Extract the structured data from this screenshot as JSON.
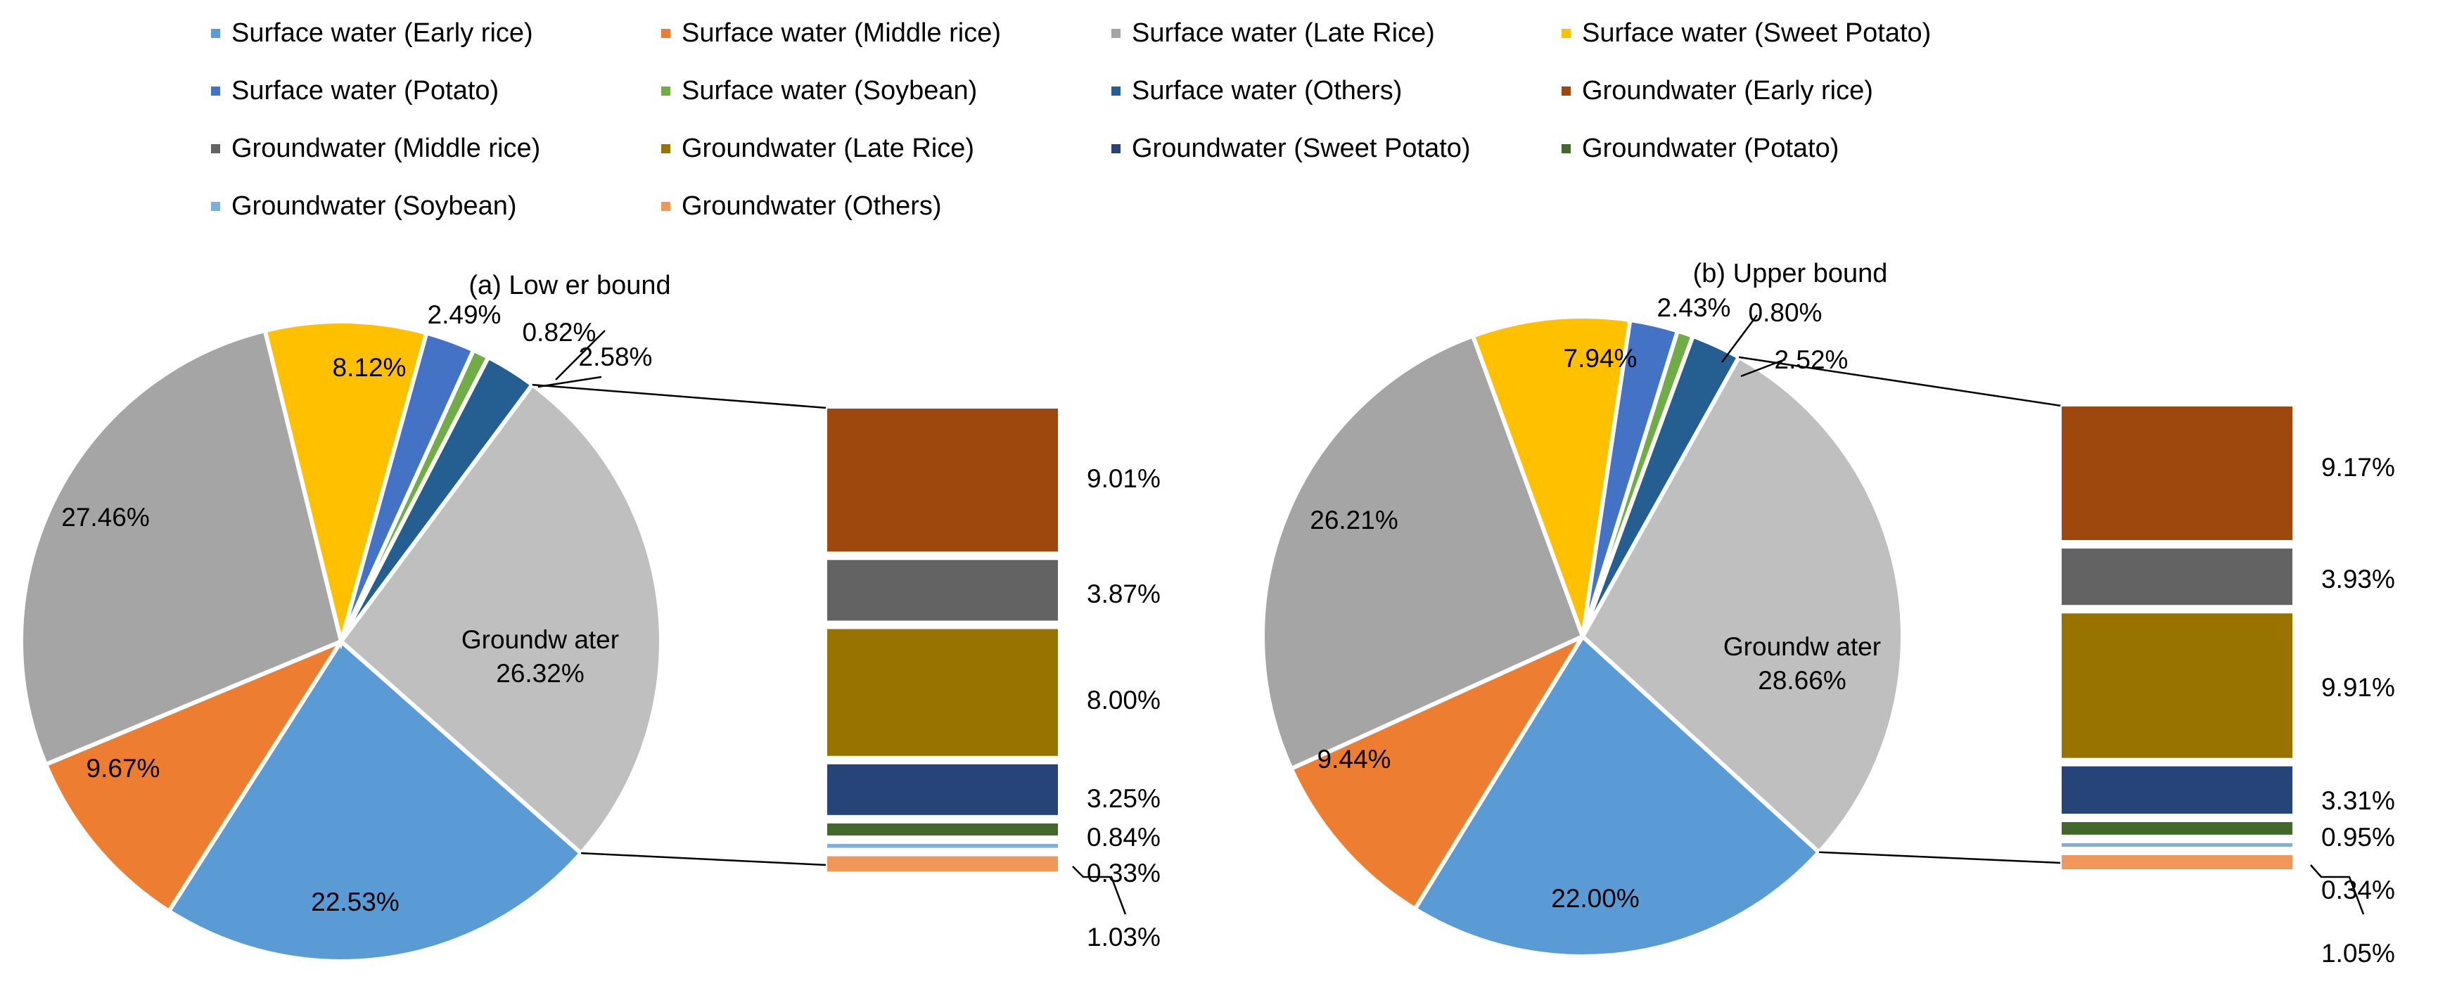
{
  "legend": [
    {
      "label": "Surface water (Early rice)",
      "color": "#5B9BD5"
    },
    {
      "label": "Surface water (Middle rice)",
      "color": "#ED7D31"
    },
    {
      "label": "Surface water (Late Rice)",
      "color": "#A5A5A5"
    },
    {
      "label": "Surface water (Sweet Potato)",
      "color": "#FFC000"
    },
    {
      "label": "Surface water (Potato)",
      "color": "#4472C4"
    },
    {
      "label": "Surface water (Soybean)",
      "color": "#70AD47"
    },
    {
      "label": "Surface water (Others)",
      "color": "#255E91"
    },
    {
      "label": "Groundwater (Early rice)",
      "color": "#9E480E"
    },
    {
      "label": "Groundwater (Middle rice)",
      "color": "#636363"
    },
    {
      "label": "Groundwater (Late Rice)",
      "color": "#997300"
    },
    {
      "label": "Groundwater (Sweet Potato)",
      "color": "#264478"
    },
    {
      "label": "Groundwater (Potato)",
      "color": "#43682B"
    },
    {
      "label": "Groundwater (Soybean)",
      "color": "#7CAFDD"
    },
    {
      "label": "Groundwater (Others)",
      "color": "#F1975A"
    }
  ],
  "chart_data": [
    {
      "type": "pie",
      "title": "(a) Low er bound",
      "pie": {
        "slices": [
          {
            "name": "Surface water (Early rice)",
            "value": 22.53,
            "label": "22.53%",
            "color": "#5B9BD5"
          },
          {
            "name": "Surface water (Middle rice)",
            "value": 9.67,
            "label": "9.67%",
            "color": "#ED7D31"
          },
          {
            "name": "Surface water (Late Rice)",
            "value": 27.46,
            "label": "27.46%",
            "color": "#A5A5A5"
          },
          {
            "name": "Surface water (Sweet Potato)",
            "value": 8.12,
            "label": "8.12%",
            "color": "#FFC000"
          },
          {
            "name": "Surface water (Potato)",
            "value": 2.49,
            "label": "2.49%",
            "color": "#4472C4"
          },
          {
            "name": "Surface water (Soybean)",
            "value": 0.82,
            "label": "0.82%",
            "color": "#70AD47"
          },
          {
            "name": "Surface water (Others)",
            "value": 2.58,
            "label": "2.58%",
            "color": "#255E91"
          },
          {
            "name": "Groundwater",
            "value": 26.32,
            "label": "Groundw ater\n26.32%",
            "color": "#BFBFBF"
          }
        ]
      },
      "bar": {
        "segments": [
          {
            "name": "Groundwater (Early rice)",
            "value": 9.01,
            "label": "9.01%",
            "color": "#9E480E"
          },
          {
            "name": "Groundwater (Middle rice)",
            "value": 3.87,
            "label": "3.87%",
            "color": "#636363"
          },
          {
            "name": "Groundwater (Late Rice)",
            "value": 8.0,
            "label": "8.00%",
            "color": "#997300"
          },
          {
            "name": "Groundwater (Sweet Potato)",
            "value": 3.25,
            "label": "3.25%",
            "color": "#264478"
          },
          {
            "name": "Groundwater (Potato)",
            "value": 0.84,
            "label": "0.84%",
            "color": "#43682B"
          },
          {
            "name": "Groundwater (Soybean)",
            "value": 0.33,
            "label": "0.33%",
            "color": "#7CAFDD"
          },
          {
            "name": "Groundwater (Others)",
            "value": 1.03,
            "label": "1.03%",
            "color": "#F1975A"
          }
        ]
      }
    },
    {
      "type": "pie",
      "title": "(b) Upper bound",
      "pie": {
        "slices": [
          {
            "name": "Surface water (Early rice)",
            "value": 22.0,
            "label": "22.00%",
            "color": "#5B9BD5"
          },
          {
            "name": "Surface water (Middle rice)",
            "value": 9.44,
            "label": "9.44%",
            "color": "#ED7D31"
          },
          {
            "name": "Surface water (Late Rice)",
            "value": 26.21,
            "label": "26.21%",
            "color": "#A5A5A5"
          },
          {
            "name": "Surface water (Sweet Potato)",
            "value": 7.94,
            "label": "7.94%",
            "color": "#FFC000"
          },
          {
            "name": "Surface water (Potato)",
            "value": 2.43,
            "label": "2.43%",
            "color": "#4472C4"
          },
          {
            "name": "Surface water (Soybean)",
            "value": 0.8,
            "label": "0.80%",
            "color": "#70AD47"
          },
          {
            "name": "Surface water (Others)",
            "value": 2.52,
            "label": "2.52%",
            "color": "#255E91"
          },
          {
            "name": "Groundwater",
            "value": 28.66,
            "label": "Groundw ater\n28.66%",
            "color": "#BFBFBF"
          }
        ]
      },
      "bar": {
        "segments": [
          {
            "name": "Groundwater (Early rice)",
            "value": 9.17,
            "label": "9.17%",
            "color": "#9E480E"
          },
          {
            "name": "Groundwater (Middle rice)",
            "value": 3.93,
            "label": "3.93%",
            "color": "#636363"
          },
          {
            "name": "Groundwater (Late Rice)",
            "value": 9.91,
            "label": "9.91%",
            "color": "#997300"
          },
          {
            "name": "Groundwater (Sweet Potato)",
            "value": 3.31,
            "label": "3.31%",
            "color": "#264478"
          },
          {
            "name": "Groundwater (Potato)",
            "value": 0.95,
            "label": "0.95%",
            "color": "#43682B"
          },
          {
            "name": "Groundwater (Soybean)",
            "value": 0.34,
            "label": "0.34%",
            "color": "#7CAFDD"
          },
          {
            "name": "Groundwater (Others)",
            "value": 1.05,
            "label": "1.05%",
            "color": "#F1975A"
          }
        ]
      }
    }
  ]
}
